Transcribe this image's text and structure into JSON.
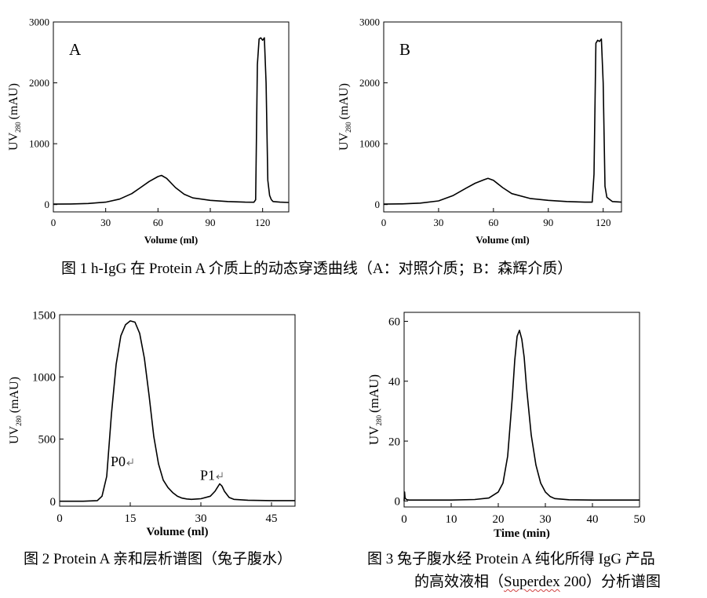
{
  "chart_data": [
    {
      "id": "fig1a",
      "type": "line",
      "panel_label": "A",
      "xlabel": "Volume (ml)",
      "ylabel_main": "UV",
      "ylabel_sub": "280",
      "ylabel_unit": "(mAU)",
      "xlim": [
        0,
        135
      ],
      "ylim": [
        -120,
        3000
      ],
      "xticks": [
        0,
        30,
        60,
        90,
        120
      ],
      "yticks": [
        0,
        1000,
        2000,
        3000
      ],
      "x": [
        0,
        10,
        20,
        30,
        38,
        45,
        50,
        55,
        60,
        62,
        65,
        70,
        75,
        80,
        90,
        100,
        110,
        115,
        116,
        117,
        118,
        119,
        120,
        121,
        122,
        123,
        124,
        125,
        126,
        130,
        135
      ],
      "y": [
        8,
        10,
        18,
        40,
        90,
        180,
        280,
        380,
        460,
        480,
        430,
        280,
        170,
        110,
        70,
        50,
        40,
        38,
        80,
        2300,
        2720,
        2740,
        2700,
        2740,
        2000,
        400,
        150,
        80,
        50,
        40,
        35
      ]
    },
    {
      "id": "fig1b",
      "type": "line",
      "panel_label": "B",
      "xlabel": "Volume (ml)",
      "ylabel_main": "UV",
      "ylabel_sub": "280",
      "ylabel_unit": "(mAU)",
      "xlim": [
        0,
        130
      ],
      "ylim": [
        -120,
        3000
      ],
      "xticks": [
        0,
        30,
        60,
        90,
        120
      ],
      "yticks": [
        0,
        1000,
        2000,
        3000
      ],
      "x": [
        0,
        10,
        20,
        30,
        38,
        45,
        50,
        55,
        57,
        60,
        65,
        70,
        80,
        90,
        100,
        110,
        114,
        115,
        116,
        117,
        118,
        119,
        120,
        121,
        122,
        125,
        130
      ],
      "y": [
        8,
        12,
        25,
        60,
        150,
        270,
        350,
        410,
        430,
        400,
        280,
        180,
        100,
        70,
        50,
        40,
        40,
        500,
        2650,
        2700,
        2680,
        2720,
        2000,
        300,
        120,
        50,
        40
      ]
    },
    {
      "id": "fig2",
      "type": "line",
      "xlabel": "Volume (ml)",
      "ylabel_main": "UV",
      "ylabel_sub": "280",
      "ylabel_unit": "(mAU)",
      "xlim": [
        0,
        50
      ],
      "ylim": [
        -40,
        1500
      ],
      "xticks": [
        0,
        15,
        30,
        45
      ],
      "yticks": [
        0,
        500,
        1000,
        1500
      ],
      "x": [
        0,
        5,
        8,
        9,
        10,
        11,
        12,
        13,
        14,
        15,
        16,
        17,
        18,
        19,
        20,
        21,
        22,
        23,
        24,
        25,
        26,
        27,
        28,
        30,
        32,
        33,
        33.5,
        34,
        34.5,
        35,
        36,
        37,
        40,
        45,
        50
      ],
      "y": [
        0,
        0,
        5,
        40,
        200,
        700,
        1100,
        1330,
        1420,
        1450,
        1440,
        1350,
        1150,
        850,
        520,
        300,
        170,
        110,
        70,
        40,
        25,
        18,
        15,
        20,
        40,
        80,
        110,
        140,
        120,
        80,
        30,
        15,
        8,
        5,
        5
      ],
      "annotations": [
        {
          "text": "P0",
          "x": 12.5,
          "y": 230
        },
        {
          "text": "P1",
          "x": 31.5,
          "y": 120
        }
      ]
    },
    {
      "id": "fig3",
      "type": "line",
      "xlabel": "Time (min)",
      "ylabel_main": "UV",
      "ylabel_sub": "280",
      "ylabel_unit": "(mAU)",
      "xlim": [
        0,
        50
      ],
      "ylim": [
        -2,
        63
      ],
      "xticks": [
        0,
        10,
        20,
        30,
        40,
        50
      ],
      "yticks": [
        0,
        20,
        40,
        60
      ],
      "x": [
        0,
        0.1,
        0.2,
        0.5,
        1,
        5,
        10,
        15,
        18,
        20,
        21,
        22,
        23,
        23.5,
        24,
        24.5,
        25,
        25.5,
        26,
        27,
        28,
        29,
        30,
        31,
        32,
        35,
        40,
        45,
        50
      ],
      "y": [
        0,
        3,
        1,
        0.5,
        0.3,
        0.3,
        0.3,
        0.5,
        1,
        3,
        6,
        15,
        35,
        47,
        55,
        57,
        54,
        48,
        38,
        22,
        12,
        6,
        3,
        1.5,
        0.8,
        0.4,
        0.3,
        0.3,
        0.3
      ]
    }
  ],
  "captions": {
    "fig1": "图 1 h-IgG 在 Protein A 介质上的动态穿透曲线（A：对照介质；B：森辉介质）",
    "fig2": "图 2 Protein A 亲和层析谱图（兔子腹水）",
    "fig3_line1": "图 3 兔子腹水经 Protein A 纯化所得 IgG 产品",
    "fig3_line2_pre": "的高效液相（",
    "fig3_line2_mark": "Superdex",
    "fig3_line2_post": " 200）分析谱图"
  }
}
